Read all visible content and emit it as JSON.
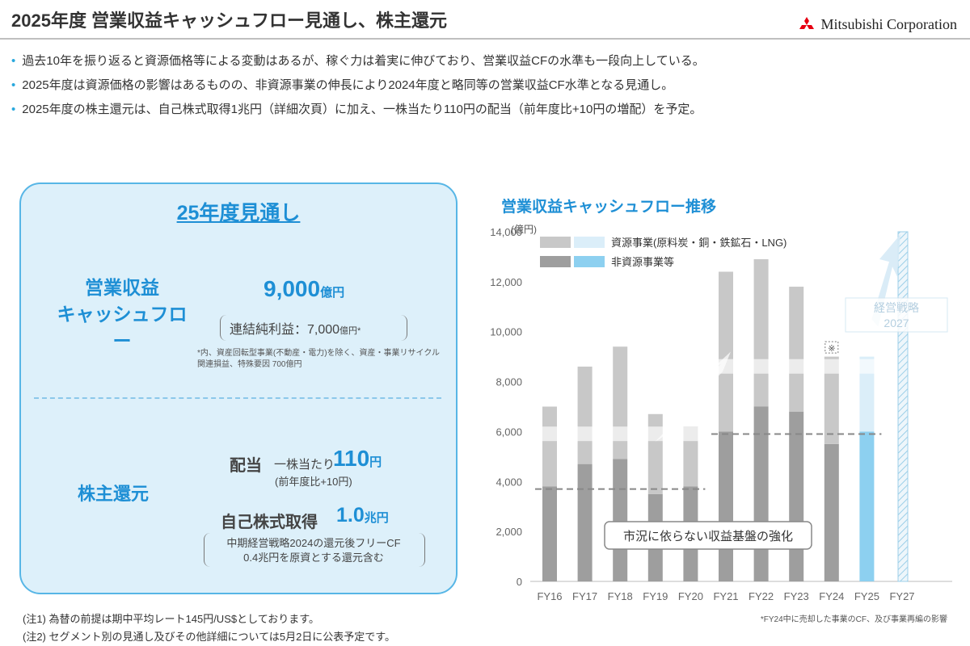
{
  "header": {
    "title": "2025年度 営業収益キャッシュフロー見通し、株主還元",
    "logo_text": "Mitsubishi Corporation"
  },
  "bullets": [
    "過去10年を振り返ると資源価格等による変動はあるが、稼ぐ力は着実に伸びており、営業収益CFの水準も一段向上している。",
    "2025年度は資源価格の影響はあるものの、非資源事業の伸長により2024年度と略同等の営業収益CF水準となる見通し。",
    "2025年度の株主還元は、自己株式取得1兆円（詳細次頁）に加え、一株当たり110円の配当（前年度比+10円の増配）を予定。"
  ],
  "panel": {
    "title": "25年度見通し",
    "cf_label_line1": "営業収益",
    "cf_label_line2": "キャッシュフロー",
    "cf_value": "9,000",
    "cf_unit": "億円",
    "net_income": "連結純利益：7,000",
    "net_income_unit": "億円*",
    "footnote_line1": "*内、資産回転型事業(不動産・電力)を除く、資産・事業リサイクル",
    "footnote_line2": "関連損益、特殊要因 700億円",
    "shareholder_label": "株主還元",
    "dividend_label": "配当",
    "dividend_sub": "一株当たり",
    "dividend_value": "110",
    "dividend_unit": "円",
    "dividend_note": "(前年度比+10円)",
    "buyback_label": "自己株式取得",
    "buyback_value": "1.0",
    "buyback_unit": "兆円",
    "buyback_note_line1": "中期経営戦略2024の還元後フリーCF",
    "buyback_note_line2": "0.4兆円を原資とする還元含む"
  },
  "notes": [
    "(注1) 為替の前提は期中平均レート145円/US$としております。",
    "(注2) セグメント別の見通し及びその他詳細については5月2日に公表予定です。"
  ],
  "colors": {
    "accent": "#1e8fd5",
    "panel_bg": "#ddf0fa",
    "resource": "#c8c8c8",
    "non_resource": "#9e9e9e",
    "resource_forecast": "#dbeef9",
    "non_resource_forecast": "#8dd0f0"
  },
  "chart_data": {
    "type": "bar",
    "title": "営業収益キャッシュフロー推移",
    "ylabel": "(億円)",
    "ylim": [
      0,
      14000
    ],
    "yticks": [
      "0",
      "2,000",
      "4,000",
      "6,000",
      "8,000",
      "10,000",
      "12,000",
      "14,000"
    ],
    "categories": [
      "FY16",
      "FY17",
      "FY18",
      "FY19",
      "FY20",
      "FY21",
      "FY22",
      "FY23",
      "FY24",
      "FY25",
      "FY27"
    ],
    "stacked": true,
    "series": [
      {
        "name": "非資源事業等",
        "values": [
          3800,
          4700,
          4900,
          3500,
          3800,
          6000,
          7000,
          6800,
          5500,
          6000,
          null
        ]
      },
      {
        "name": "資源事業(原料炭・銅・鉄鉱石・LNG)",
        "values": [
          3200,
          3900,
          4500,
          3200,
          2400,
          6400,
          5900,
          5000,
          3500,
          3000,
          null
        ]
      }
    ],
    "fy27_target_bar": 14000,
    "fy24_marker": "※",
    "reference_lines": [
      {
        "from": "FY16",
        "to": "FY20",
        "value": 3700
      },
      {
        "from": "FY21",
        "to": "FY25",
        "value": 5900
      }
    ],
    "annotation_box": "市況に依らない収益基盤の強化",
    "strategy_label_line1": "経営戦略",
    "strategy_label_line2": "2027",
    "footnote": "*FY24中に売却した事業のCF、及び事業再編の影響",
    "legend_position": "top-left"
  }
}
